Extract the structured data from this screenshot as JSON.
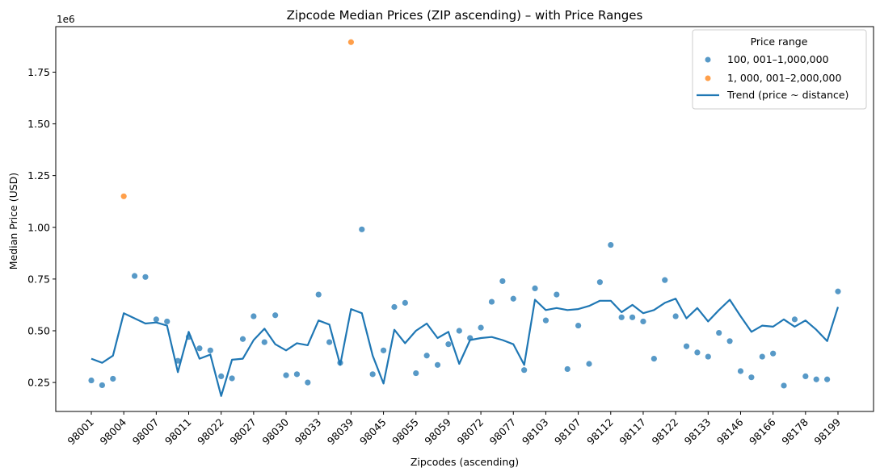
{
  "chart_data": {
    "type": "scatter",
    "title": "Zipcode Median Prices (ZIP ascending) – with Price Ranges",
    "xlabel": "Zipcodes (ascending)",
    "ylabel": "Median Price (USD)",
    "y_offset_label": "1e6",
    "ylim": [
      0.11,
      1.97
    ],
    "y_ticks": [
      0.25,
      0.5,
      0.75,
      1.0,
      1.25,
      1.5,
      1.75
    ],
    "y_tick_labels": [
      "0.25",
      "0.50",
      "0.75",
      "1.00",
      "1.25",
      "1.50",
      "1.75"
    ],
    "n_points": 70,
    "x_ticks": [
      {
        "index": 0,
        "label": "98001"
      },
      {
        "index": 3,
        "label": "98004"
      },
      {
        "index": 6,
        "label": "98007"
      },
      {
        "index": 9,
        "label": "98011"
      },
      {
        "index": 12,
        "label": "98022"
      },
      {
        "index": 15,
        "label": "98027"
      },
      {
        "index": 18,
        "label": "98030"
      },
      {
        "index": 21,
        "label": "98033"
      },
      {
        "index": 24,
        "label": "98039"
      },
      {
        "index": 27,
        "label": "98045"
      },
      {
        "index": 30,
        "label": "98055"
      },
      {
        "index": 33,
        "label": "98059"
      },
      {
        "index": 36,
        "label": "98072"
      },
      {
        "index": 39,
        "label": "98077"
      },
      {
        "index": 42,
        "label": "98103"
      },
      {
        "index": 45,
        "label": "98107"
      },
      {
        "index": 48,
        "label": "98112"
      },
      {
        "index": 51,
        "label": "98117"
      },
      {
        "index": 54,
        "label": "98122"
      },
      {
        "index": 57,
        "label": "98133"
      },
      {
        "index": 60,
        "label": "98146"
      },
      {
        "index": 63,
        "label": "98166"
      },
      {
        "index": 66,
        "label": "98178"
      },
      {
        "index": 69,
        "label": "98199"
      }
    ],
    "series": [
      {
        "name": "100, 001–1,000,000",
        "color": "#1f77b4",
        "points": [
          [
            0,
            0.26
          ],
          [
            1,
            0.237
          ],
          [
            2,
            0.268
          ],
          [
            4,
            0.765
          ],
          [
            5,
            0.76
          ],
          [
            6,
            0.555
          ],
          [
            7,
            0.545
          ],
          [
            8,
            0.355
          ],
          [
            9,
            0.47
          ],
          [
            10,
            0.415
          ],
          [
            11,
            0.405
          ],
          [
            12,
            0.28
          ],
          [
            13,
            0.27
          ],
          [
            14,
            0.46
          ],
          [
            15,
            0.57
          ],
          [
            16,
            0.445
          ],
          [
            17,
            0.575
          ],
          [
            18,
            0.285
          ],
          [
            19,
            0.29
          ],
          [
            20,
            0.25
          ],
          [
            21,
            0.675
          ],
          [
            22,
            0.445
          ],
          [
            23,
            0.345
          ],
          [
            25,
            0.99
          ],
          [
            26,
            0.29
          ],
          [
            27,
            0.405
          ],
          [
            28,
            0.615
          ],
          [
            29,
            0.635
          ],
          [
            30,
            0.295
          ],
          [
            31,
            0.38
          ],
          [
            32,
            0.335
          ],
          [
            33,
            0.435
          ],
          [
            34,
            0.5
          ],
          [
            35,
            0.465
          ],
          [
            36,
            0.515
          ],
          [
            37,
            0.64
          ],
          [
            38,
            0.74
          ],
          [
            39,
            0.655
          ],
          [
            40,
            0.31
          ],
          [
            41,
            0.705
          ],
          [
            42,
            0.55
          ],
          [
            43,
            0.675
          ],
          [
            44,
            0.315
          ],
          [
            45,
            0.525
          ],
          [
            46,
            0.34
          ],
          [
            47,
            0.735
          ],
          [
            48,
            0.915
          ],
          [
            49,
            0.565
          ],
          [
            50,
            0.565
          ],
          [
            51,
            0.545
          ],
          [
            52,
            0.365
          ],
          [
            53,
            0.745
          ],
          [
            54,
            0.57
          ],
          [
            55,
            0.425
          ],
          [
            56,
            0.395
          ],
          [
            57,
            0.375
          ],
          [
            58,
            0.49
          ],
          [
            59,
            0.45
          ],
          [
            60,
            0.305
          ],
          [
            61,
            0.275
          ],
          [
            62,
            0.375
          ],
          [
            63,
            0.39
          ],
          [
            64,
            0.235
          ],
          [
            65,
            0.555
          ],
          [
            66,
            0.28
          ],
          [
            67,
            0.265
          ],
          [
            68,
            0.265
          ],
          [
            69,
            0.69
          ]
        ]
      },
      {
        "name": "1, 000, 001–2,000,000",
        "color": "#ff7f0e",
        "points": [
          [
            3,
            1.15
          ],
          [
            24,
            1.895
          ]
        ]
      }
    ],
    "trend": {
      "name": "Trend (price ~ distance)",
      "color": "#1f77b4",
      "values": [
        0.365,
        0.345,
        0.38,
        0.585,
        0.56,
        0.535,
        0.54,
        0.525,
        0.3,
        0.495,
        0.365,
        0.385,
        0.185,
        0.36,
        0.365,
        0.455,
        0.51,
        0.435,
        0.405,
        0.44,
        0.43,
        0.55,
        0.53,
        0.335,
        0.605,
        0.585,
        0.38,
        0.245,
        0.505,
        0.44,
        0.5,
        0.535,
        0.465,
        0.495,
        0.34,
        0.455,
        0.465,
        0.47,
        0.455,
        0.435,
        0.335,
        0.65,
        0.6,
        0.61,
        0.6,
        0.605,
        0.62,
        0.645,
        0.645,
        0.59,
        0.625,
        0.585,
        0.6,
        0.635,
        0.655,
        0.56,
        0.61,
        0.545,
        0.6,
        0.65,
        0.57,
        0.495,
        0.525,
        0.52,
        0.555,
        0.52,
        0.55,
        0.505,
        0.45,
        0.615
      ]
    },
    "legend": {
      "title": "Price range",
      "placement": "top-right"
    }
  }
}
